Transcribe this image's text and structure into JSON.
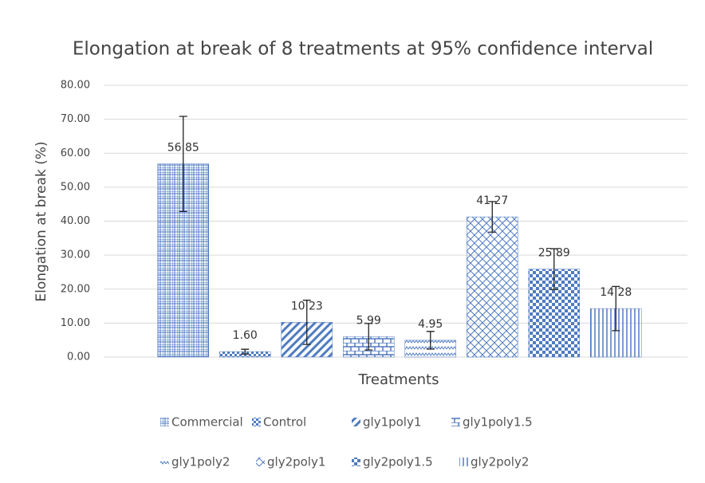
{
  "chart_data": {
    "type": "bar",
    "title": "Elongation at break of 8 treatments at 95% confidence interval",
    "x_label": "Treatments",
    "y_label": "Elongation at break (%)",
    "categories": [
      "Commercial",
      "Control",
      "gly1poly1",
      "gly1poly1.5",
      "gly1poly2",
      "gly2poly1",
      "gly2poly1.5",
      "gly2poly2"
    ],
    "values": [
      56.85,
      1.6,
      10.23,
      5.99,
      4.95,
      41.27,
      25.89,
      14.28
    ],
    "value_labels": [
      "56.85",
      "1.60",
      "10.23",
      "5.99",
      "4.95",
      "41.27",
      "25.89",
      "14.28"
    ],
    "errors": [
      14,
      0.7,
      6.5,
      3.9,
      2.6,
      4.5,
      6,
      6.5
    ],
    "color": "#4f7bc0",
    "ylim": [
      0,
      80
    ],
    "yticks": [
      {
        "value": 0,
        "label": "0.00"
      },
      {
        "value": 10,
        "label": "10.00"
      },
      {
        "value": 20,
        "label": "20.00"
      },
      {
        "value": 30,
        "label": "30.00"
      },
      {
        "value": 40,
        "label": "40.00"
      },
      {
        "value": 50,
        "label": "50.00"
      },
      {
        "value": 60,
        "label": "60.00"
      },
      {
        "value": 70,
        "label": "70.00"
      },
      {
        "value": 80,
        "label": "80.00"
      }
    ],
    "grid": true,
    "legend": "bottom"
  }
}
